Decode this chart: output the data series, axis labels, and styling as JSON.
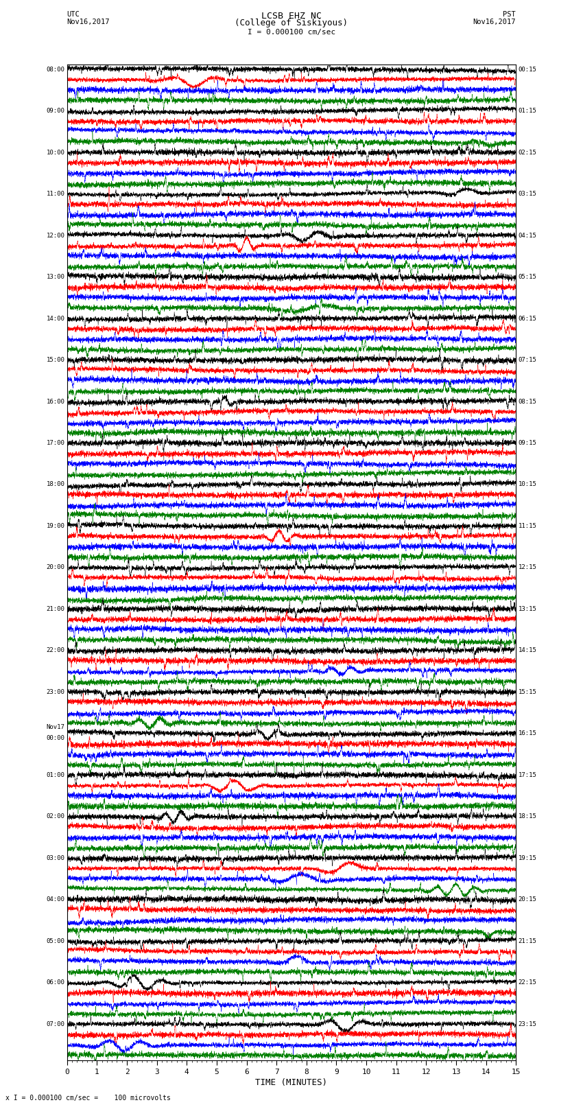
{
  "title_line1": "LCSB EHZ NC",
  "title_line2": "(College of Siskiyous)",
  "scale_label": "I = 0.000100 cm/sec",
  "bottom_label": "x I = 0.000100 cm/sec =    100 microvolts",
  "xlabel": "TIME (MINUTES)",
  "left_labels": [
    "08:00",
    "09:00",
    "10:00",
    "11:00",
    "12:00",
    "13:00",
    "14:00",
    "15:00",
    "16:00",
    "17:00",
    "18:00",
    "19:00",
    "20:00",
    "21:00",
    "22:00",
    "23:00",
    "Nov17\n00:00",
    "01:00",
    "02:00",
    "03:00",
    "04:00",
    "05:00",
    "06:00",
    "07:00"
  ],
  "right_labels": [
    "00:15",
    "01:15",
    "02:15",
    "03:15",
    "04:15",
    "05:15",
    "06:15",
    "07:15",
    "08:15",
    "09:15",
    "10:15",
    "11:15",
    "12:15",
    "13:15",
    "14:15",
    "15:15",
    "16:15",
    "17:15",
    "18:15",
    "19:15",
    "20:15",
    "21:15",
    "22:15",
    "23:15"
  ],
  "colors": [
    "black",
    "red",
    "blue",
    "green"
  ],
  "n_rows": 96,
  "n_points": 4500,
  "x_min": 0,
  "x_max": 15,
  "bg_color": "white",
  "fig_width": 8.5,
  "fig_height": 16.13,
  "dpi": 100,
  "row_amplitude": 0.38,
  "base_noise_std": 0.12,
  "spike_prob": 0.003,
  "spike_amplitude": 0.9
}
